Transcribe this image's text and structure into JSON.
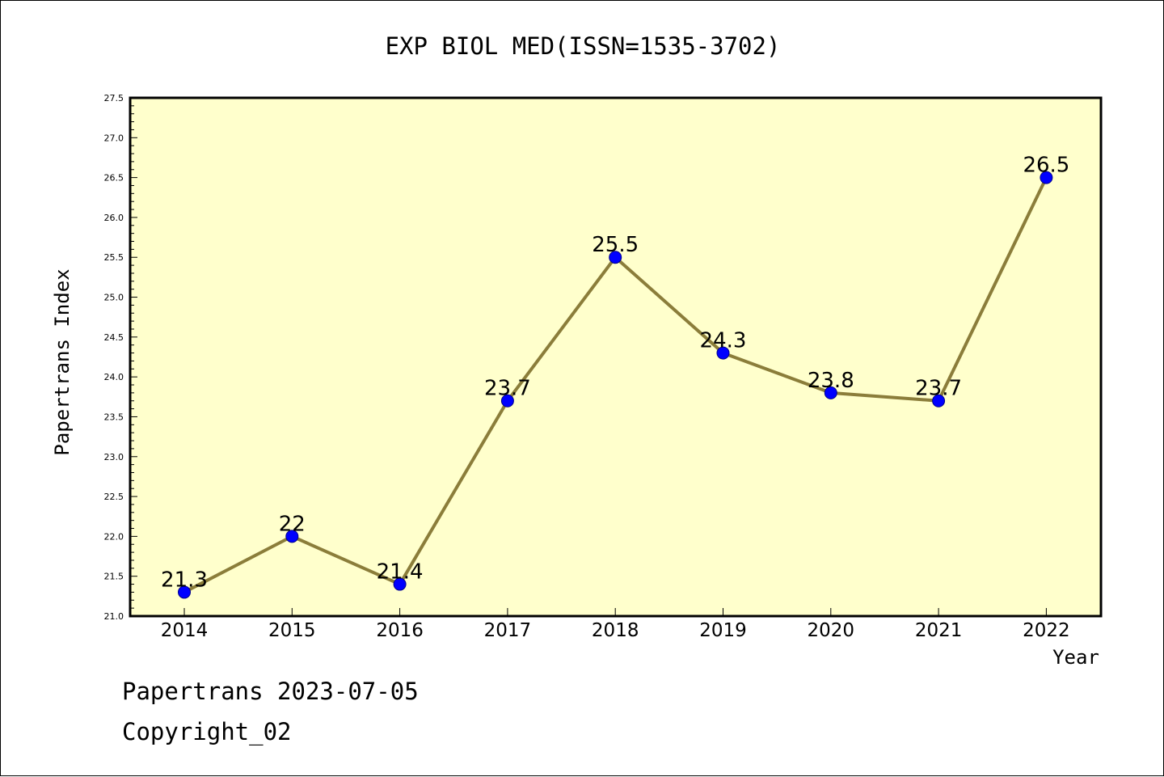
{
  "chart_data": {
    "type": "line",
    "title": "EXP BIOL MED(ISSN=1535-3702)",
    "xlabel": "Year",
    "ylabel": "Papertrans Index",
    "categories": [
      "2014",
      "2015",
      "2016",
      "2017",
      "2018",
      "2019",
      "2020",
      "2021",
      "2022"
    ],
    "series": [
      {
        "values": [
          21.3,
          22,
          21.4,
          23.7,
          25.5,
          24.3,
          23.8,
          23.7,
          26.5
        ],
        "labels": [
          "21.3",
          "22",
          "21.4",
          "23.7",
          "25.5",
          "24.3",
          "23.8",
          "23.7",
          "26.5"
        ]
      }
    ],
    "ylim": [
      21.0,
      27.5
    ],
    "yticks": [
      "21.0",
      "21.5",
      "22.0",
      "22.5",
      "23.0",
      "23.5",
      "24.0",
      "24.5",
      "25.0",
      "25.5",
      "26.0",
      "26.5",
      "27.0",
      "27.5"
    ],
    "grid": false,
    "legend": "none",
    "colors": {
      "plot_background": "#ffffcc",
      "line": "#8b7d3a",
      "marker": "#0000ff"
    }
  },
  "footer": {
    "line1": "Papertrans 2023-07-05",
    "line2": "Copyright_02"
  }
}
